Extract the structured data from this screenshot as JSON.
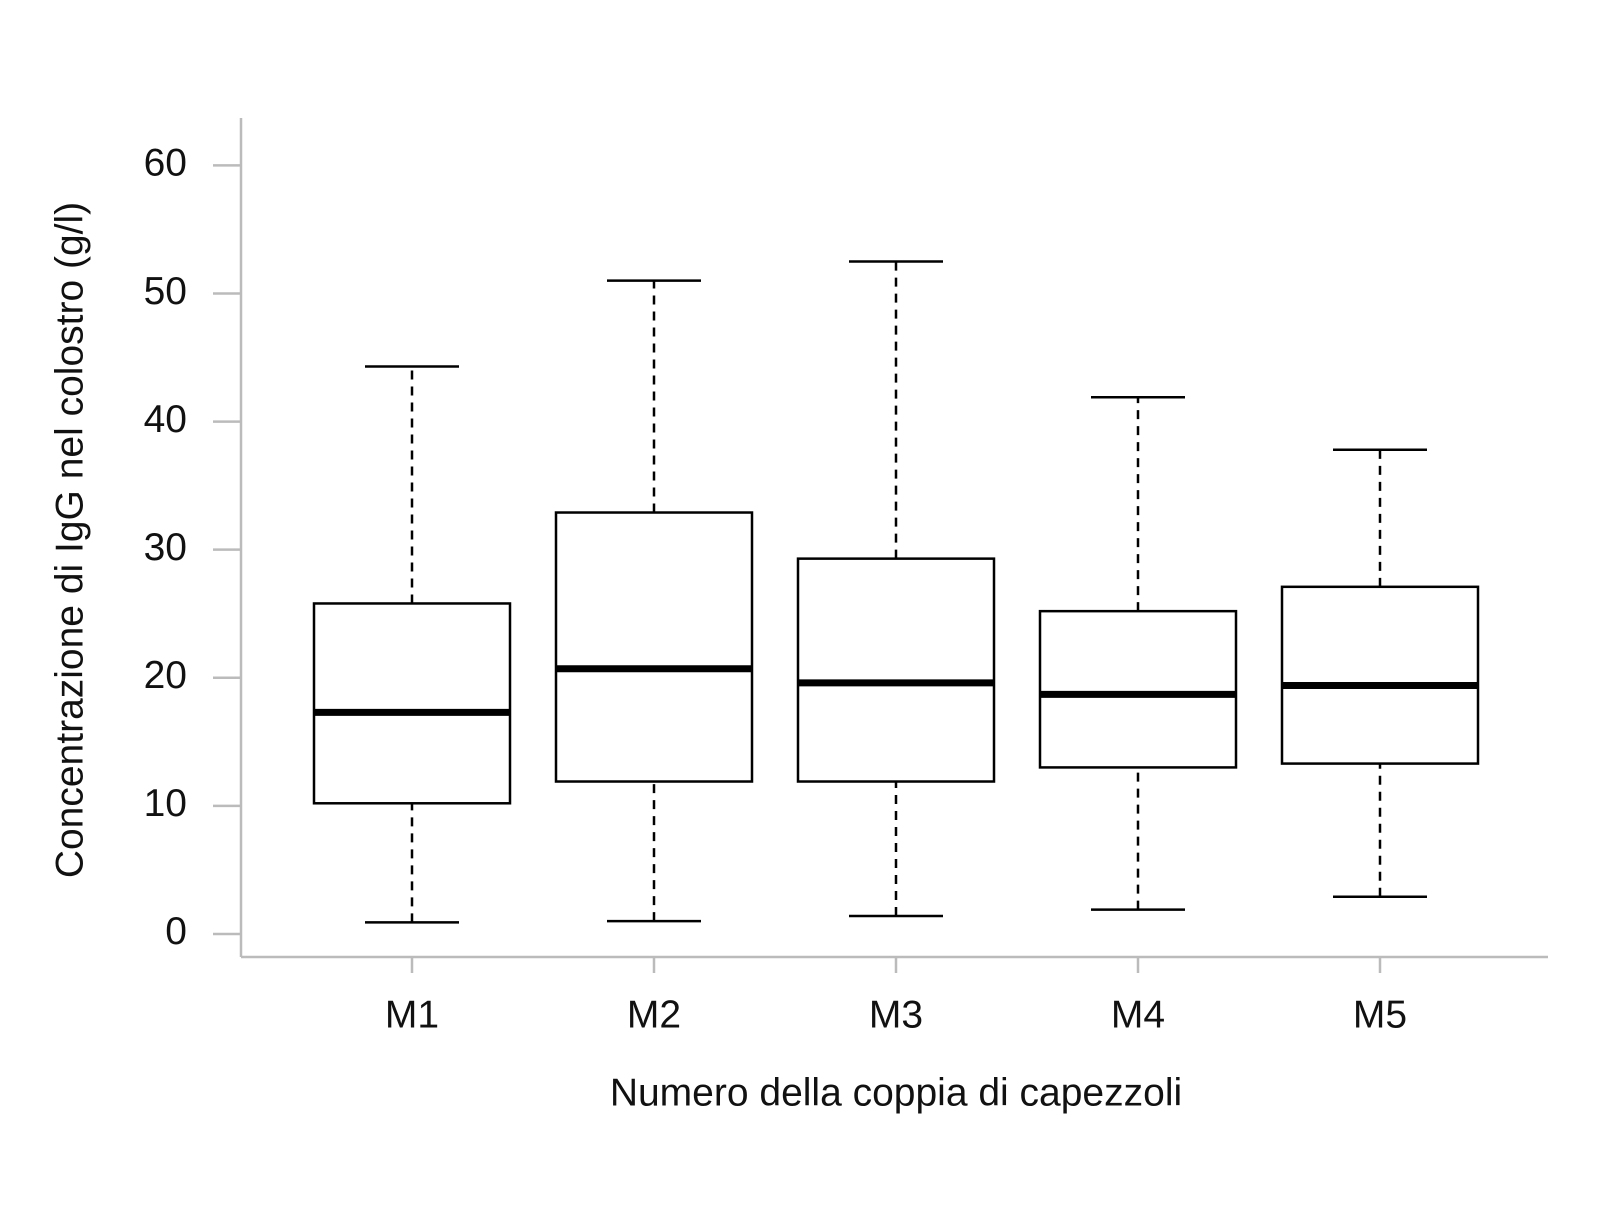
{
  "chart_data": {
    "type": "box",
    "x_label": "Numero della coppia di capezzoli",
    "y_label": "Concentrazione di IgG nel colostro (g/l)",
    "categories": [
      "M1",
      "M2",
      "M3",
      "M4",
      "M5"
    ],
    "min": [
      0.9,
      1.0,
      1.4,
      1.9,
      2.9
    ],
    "q1": [
      10.2,
      11.9,
      11.9,
      13.0,
      13.3
    ],
    "median": [
      17.3,
      20.7,
      19.6,
      18.7,
      19.4
    ],
    "q3": [
      25.8,
      32.9,
      29.3,
      25.2,
      27.1
    ],
    "max": [
      44.3,
      51.0,
      52.5,
      41.9,
      37.8
    ],
    "ylim": [
      -1.8,
      63.7
    ],
    "yticks": [
      0,
      10,
      20,
      30,
      40,
      50,
      60
    ]
  }
}
